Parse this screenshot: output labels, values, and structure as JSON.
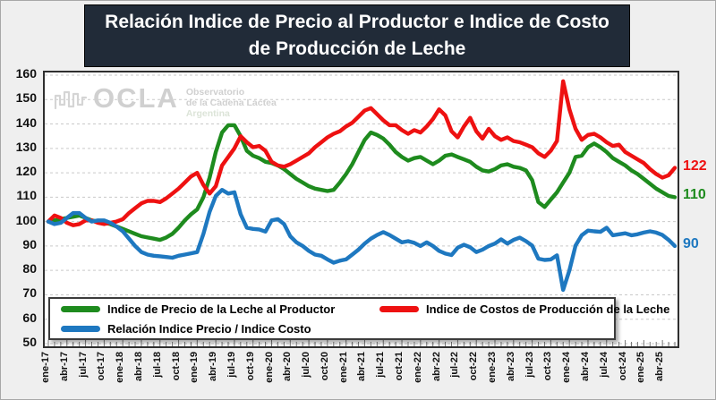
{
  "title": {
    "line1": "Relación Indice de Precio al Productor e Indice de Costo",
    "line2": "de Producción de Leche"
  },
  "watermark": {
    "name": "OCLA",
    "sub1": "Observatorio",
    "sub2": "de la Cadena Láctea",
    "sub3": "Argentina"
  },
  "chart_data": {
    "type": "line",
    "x_unit": "month",
    "x_range": "ene-17 a jun-25",
    "x_tick_labels": [
      "ene-17",
      "abr-17",
      "jul-17",
      "oct-17",
      "ene-18",
      "abr-18",
      "jul-18",
      "oct-18",
      "ene-19",
      "abr-19",
      "jul-19",
      "oct-19",
      "ene-20",
      "abr-20",
      "jul-20",
      "oct-20",
      "ene-21",
      "abr-21",
      "jul-21",
      "oct-21",
      "ene-22",
      "abr-22",
      "jul-22",
      "oct-22",
      "ene-23",
      "abr-23",
      "jul-23",
      "oct-23",
      "ene-24",
      "abr-24",
      "jul-24",
      "oct-24",
      "ene-25",
      "abr-25"
    ],
    "months_per_tick": 3,
    "ylim": [
      50,
      160
    ],
    "y_ticks": [
      160,
      150,
      140,
      130,
      120,
      110,
      100,
      90,
      80,
      70,
      60,
      50
    ],
    "grid": "horizontal-dashed",
    "legend_position": "bottom-inside",
    "legend_order": [
      0,
      2,
      1
    ],
    "series": [
      {
        "name": "Indice de Precio de la Leche al Productor",
        "color": "#1e8b1e",
        "end_label": "110",
        "values": [
          100,
          100.5,
          101,
          101.5,
          102,
          102.5,
          101.5,
          100.5,
          100,
          99.5,
          99,
          98,
          97,
          96,
          95,
          94,
          93.5,
          93,
          92.5,
          93.5,
          95,
          97.5,
          100.5,
          103,
          105,
          110,
          118,
          128.5,
          136.5,
          139.5,
          139.5,
          135,
          129,
          127,
          126,
          124.5,
          124,
          123,
          121.5,
          119.5,
          117.5,
          116,
          114.5,
          113.5,
          113,
          112.5,
          113,
          116,
          119.5,
          123.5,
          128.5,
          133.5,
          136.5,
          135.5,
          134,
          131.5,
          128.5,
          126.5,
          125,
          126,
          126.5,
          125,
          123.5,
          125,
          127,
          127.5,
          126.5,
          125.5,
          124.5,
          122.5,
          121,
          120.5,
          121.5,
          123,
          123.5,
          122.5,
          122,
          121,
          117,
          108,
          106,
          109,
          112,
          116,
          120,
          126.5,
          127,
          130.5,
          132,
          130.5,
          128.5,
          126,
          124.5,
          123,
          121,
          119.5,
          117.5,
          115.5,
          113.5,
          112,
          110.5,
          110
        ]
      },
      {
        "name": "Indice de Costos de Producción de la Leche",
        "color": "#ee1111",
        "end_label": "122",
        "values": [
          100,
          102.5,
          101.5,
          99.5,
          98.5,
          99,
          100.5,
          100.5,
          99.5,
          99,
          99.5,
          100,
          101,
          103.5,
          105.5,
          107.5,
          108.5,
          108.5,
          108,
          109.5,
          111.5,
          113.5,
          116,
          118.5,
          120,
          115,
          111.5,
          114.5,
          123,
          126.5,
          130,
          135,
          132.5,
          130.5,
          131,
          129,
          124.5,
          123,
          122.5,
          123.5,
          125,
          126.5,
          128,
          130.5,
          132.5,
          134.5,
          136,
          137,
          139,
          140.5,
          143,
          145.5,
          146.5,
          144,
          141.5,
          139.5,
          139.5,
          137.5,
          136,
          137.5,
          136.5,
          139,
          142,
          146,
          143.5,
          137,
          134.5,
          139,
          142.5,
          137,
          134,
          138,
          135,
          133.5,
          134.5,
          133,
          132.5,
          131.5,
          130.5,
          128,
          126.5,
          129,
          133,
          157.5,
          146,
          138,
          133.5,
          135.5,
          136,
          134.5,
          132.5,
          131,
          131.5,
          128.5,
          127,
          125.5,
          124,
          121.5,
          119.5,
          118,
          119,
          122
        ]
      },
      {
        "name": "Relación Indice Precio / Indice Costo",
        "color": "#1e78c0",
        "end_label": "90",
        "values": [
          100,
          99,
          99.5,
          101.5,
          103.5,
          103.5,
          101.5,
          100,
          100.5,
          100.5,
          99.5,
          98,
          96,
          93,
          90,
          87.5,
          86.5,
          86,
          85.8,
          85.5,
          85.2,
          86,
          86.5,
          87,
          87.5,
          95,
          104,
          110.5,
          113,
          111.5,
          112,
          103,
          97.5,
          97,
          96.8,
          95.9,
          100.5,
          101,
          99,
          94,
          91.5,
          90,
          88,
          86.5,
          86,
          84.5,
          83.2,
          84,
          84.5,
          86.5,
          88.5,
          91,
          93,
          94.5,
          95.7,
          94.5,
          93,
          91.5,
          92,
          91.3,
          90,
          91.5,
          90,
          88,
          86.9,
          86.3,
          89.3,
          90.5,
          89.5,
          87.5,
          88.5,
          90,
          91,
          92.7,
          91,
          92.5,
          93.4,
          92,
          90.2,
          84.8,
          84.3,
          84.5,
          86.2,
          72,
          80,
          90.2,
          94.4,
          96.3,
          96,
          95.8,
          97.5,
          94.4,
          94.8,
          95.2,
          94.4,
          94.8,
          95.5,
          96,
          95.5,
          94.5,
          92.5,
          90
        ]
      }
    ]
  },
  "style": {
    "grid_color": "#c9c9c9",
    "frame_color": "#2f2f2f",
    "title_bg": "#212b38"
  }
}
